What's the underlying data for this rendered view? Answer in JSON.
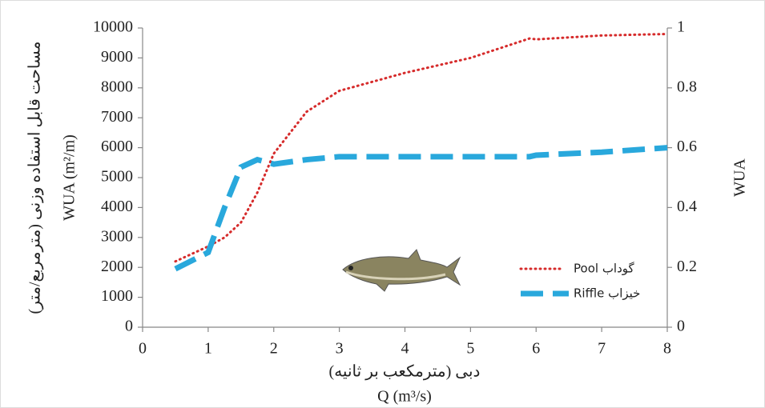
{
  "chart_data": {
    "type": "line",
    "x_label_fa": "دبی (مترمکعب بر ثانیه)",
    "x_label": "Q (m³/s)",
    "y_label_fa": "مساحت قابل استفاده وزنی (مترمربع/متر)",
    "y_label": "WUA (m²/m)",
    "y2_label": "WUA",
    "x": [
      0.5,
      1,
      1.25,
      1.5,
      1.75,
      2,
      2.5,
      3,
      4,
      5,
      5.9,
      6,
      7,
      8
    ],
    "series": [
      {
        "name": "Pool گوداب",
        "color": "#d62b2b",
        "style": "dotted",
        "values": [
          2200,
          2700,
          3000,
          3500,
          4500,
          5800,
          7200,
          7900,
          8500,
          9000,
          9650,
          9620,
          9750,
          9800
        ]
      },
      {
        "name": "Riffle خیزاب",
        "color": "#29a8dc",
        "style": "dashed",
        "values": [
          1950,
          2500,
          4000,
          5350,
          5600,
          5450,
          5600,
          5700,
          5700,
          5700,
          5700,
          5750,
          5850,
          6000
        ]
      }
    ],
    "xlim": [
      0,
      8
    ],
    "xticks": [
      0,
      1,
      2,
      3,
      4,
      5,
      6,
      7,
      8
    ],
    "ylim": [
      0,
      10000
    ],
    "yticks": [
      0,
      1000,
      2000,
      3000,
      4000,
      5000,
      6000,
      7000,
      8000,
      9000,
      10000
    ],
    "y2lim": [
      0,
      1
    ],
    "y2ticks": [
      0,
      0.2,
      0.4,
      0.6,
      0.8,
      1
    ],
    "legend": "lower right"
  }
}
